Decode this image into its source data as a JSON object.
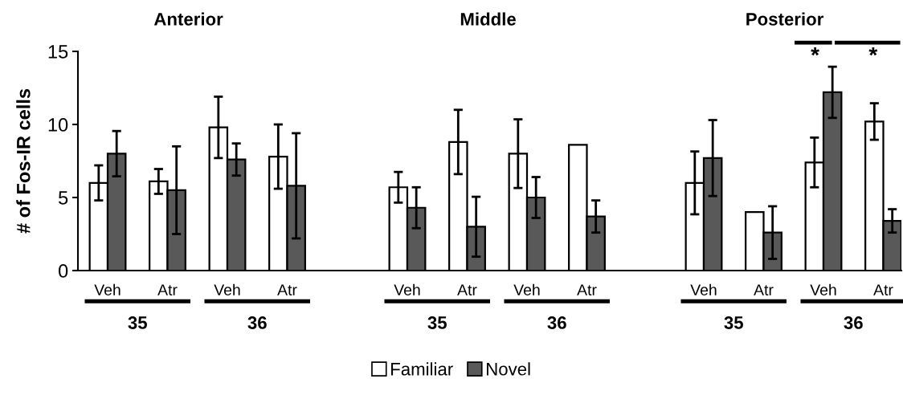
{
  "chart_data": [
    {
      "type": "bar",
      "title": "Anterior",
      "ylabel": "# of Fos-IR cells",
      "categories": [
        "Veh",
        "Atr",
        "Veh",
        "Atr"
      ],
      "ylim": [
        0,
        15
      ],
      "yticks": [
        0,
        5,
        10,
        15
      ],
      "grid": false,
      "legend": "bottom",
      "series": [
        {
          "name": "Familiar",
          "color": "#ffffff",
          "values": [
            6.0,
            6.1,
            9.8,
            7.8
          ],
          "errors": [
            1.2,
            0.85,
            2.1,
            2.2
          ]
        },
        {
          "name": "Novel",
          "color": "#595959",
          "values": [
            8.0,
            5.5,
            7.6,
            5.8
          ],
          "errors": [
            1.55,
            3.0,
            1.1,
            3.6
          ]
        }
      ],
      "annotations": [
        "35",
        "36"
      ]
    },
    {
      "type": "bar",
      "title": "Middle",
      "categories": [
        "Veh",
        "Atr",
        "Veh",
        "Atr"
      ],
      "ylim": [
        0,
        15
      ],
      "tick_labels": "x",
      "grid": false,
      "series": [
        {
          "color": "#ffffff",
          "values": [
            5.7,
            8.8,
            8.0,
            8.6
          ],
          "errors": [
            1.05,
            2.2,
            2.35,
            null
          ]
        },
        {
          "color": "#595959",
          "values": [
            4.3,
            3.0,
            5.0,
            3.7
          ],
          "errors": [
            1.4,
            2.05,
            1.4,
            1.1
          ]
        }
      ],
      "annotations": [
        "35",
        "36"
      ]
    },
    {
      "type": "bar",
      "title": "Posterior",
      "categories": [
        "Veh",
        "Atr",
        "Veh",
        "Atr"
      ],
      "ylim": [
        0,
        15
      ],
      "tick_labels": "x",
      "grid": false,
      "series": [
        {
          "color": "#ffffff",
          "values": [
            6.0,
            4.0,
            7.4,
            10.2
          ],
          "errors": [
            2.15,
            null,
            1.7,
            1.25
          ]
        },
        {
          "color": "#595959",
          "values": [
            7.7,
            2.6,
            12.2,
            3.4
          ],
          "errors": [
            2.6,
            1.8,
            1.75,
            0.8
          ]
        }
      ],
      "annotations": [
        "35",
        "36",
        "*",
        "*"
      ]
    }
  ]
}
